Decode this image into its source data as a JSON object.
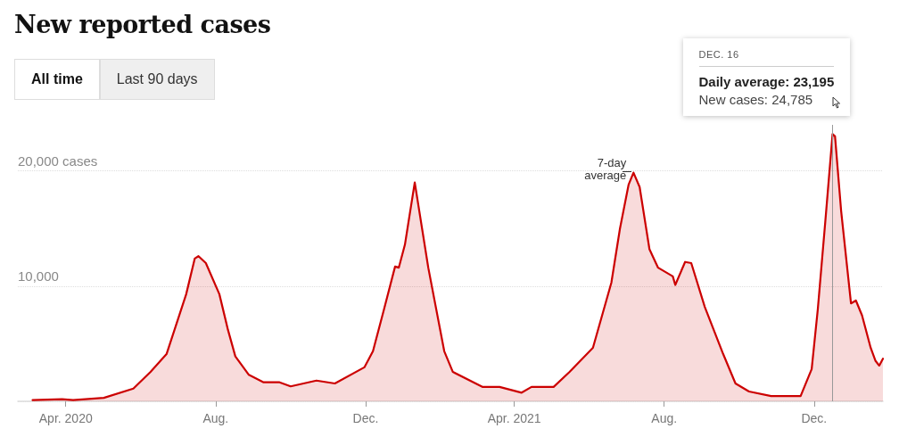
{
  "chart_data": {
    "type": "area",
    "title": "New reported cases",
    "x": [
      "2020-03-05",
      "2020-03-29",
      "2020-04-07",
      "2020-05-02",
      "2020-05-26",
      "2020-06-09",
      "2020-06-22",
      "2020-07-08",
      "2020-07-15",
      "2020-07-18",
      "2020-07-24",
      "2020-08-04",
      "2020-08-11",
      "2020-08-17",
      "2020-08-28",
      "2020-09-09",
      "2020-09-22",
      "2020-10-01",
      "2020-10-22",
      "2020-11-06",
      "2020-11-30",
      "2020-12-07",
      "2020-12-16",
      "2020-12-25",
      "2020-12-28",
      "2021-01-02",
      "2021-01-10",
      "2021-01-21",
      "2021-02-03",
      "2021-02-10",
      "2021-03-06",
      "2021-03-20",
      "2021-04-07",
      "2021-04-15",
      "2021-05-03",
      "2021-05-16",
      "2021-06-04",
      "2021-06-19",
      "2021-06-26",
      "2021-07-03",
      "2021-07-07",
      "2021-07-12",
      "2021-07-20",
      "2021-07-27",
      "2021-08-08",
      "2021-08-10",
      "2021-08-18",
      "2021-08-23",
      "2021-09-03",
      "2021-09-18",
      "2021-09-28",
      "2021-10-09",
      "2021-10-27",
      "2021-11-20",
      "2021-11-29",
      "2021-12-04",
      "2021-12-10",
      "2021-12-16",
      "2021-12-18",
      "2021-12-23",
      "2021-12-31",
      "2022-01-04",
      "2022-01-09",
      "2022-01-16",
      "2022-01-20",
      "2022-01-23",
      "2022-01-26"
    ],
    "series": [
      {
        "color": "#cc0000",
        "values": [
          100,
          180,
          100,
          300,
          1100,
          2550,
          4100,
          9300,
          12400,
          12600,
          12000,
          9300,
          6200,
          3900,
          2300,
          1650,
          1650,
          1300,
          1800,
          1550,
          2950,
          4350,
          8000,
          11700,
          11600,
          13600,
          19000,
          11600,
          4350,
          2550,
          1250,
          1250,
          750,
          1250,
          1250,
          2550,
          4650,
          10300,
          15000,
          18800,
          19850,
          18600,
          13200,
          11600,
          10850,
          10100,
          12100,
          12000,
          8200,
          4100,
          1550,
          850,
          450,
          450,
          2800,
          8000,
          15500,
          23200,
          23000,
          16500,
          8500,
          8750,
          7450,
          4650,
          3500,
          3100,
          3700
        ]
      }
    ],
    "xlim": [
      "2020-02-22",
      "2022-01-26"
    ],
    "xticks": [
      {
        "value": "2020-04-01",
        "label": "Apr. 2020"
      },
      {
        "value": "2020-08-01",
        "label": "Aug."
      },
      {
        "value": "2020-12-01",
        "label": "Dec."
      },
      {
        "value": "2021-04-01",
        "label": "Apr. 2021"
      },
      {
        "value": "2021-08-01",
        "label": "Aug."
      },
      {
        "value": "2021-12-01",
        "label": "Dec."
      }
    ],
    "ylim": [
      0,
      24000
    ],
    "yticks": [
      {
        "value": 0,
        "label": null
      },
      {
        "value": 10000,
        "label": "10,000"
      },
      {
        "value": 20000,
        "label": "20,000 cases"
      }
    ],
    "grid": "y",
    "marker": "none",
    "line_style": "solid",
    "ref_lines": [
      {
        "axis": "x",
        "value": "2021-12-16",
        "color": "#999999"
      }
    ],
    "annotations": [
      "All time",
      "Last 90 days",
      {
        "text": "7-day average",
        "x": "2021-07-07",
        "y": 19850
      },
      "DEC. 16",
      "Daily average: 23,195",
      "New cases: 24,785"
    ]
  }
}
